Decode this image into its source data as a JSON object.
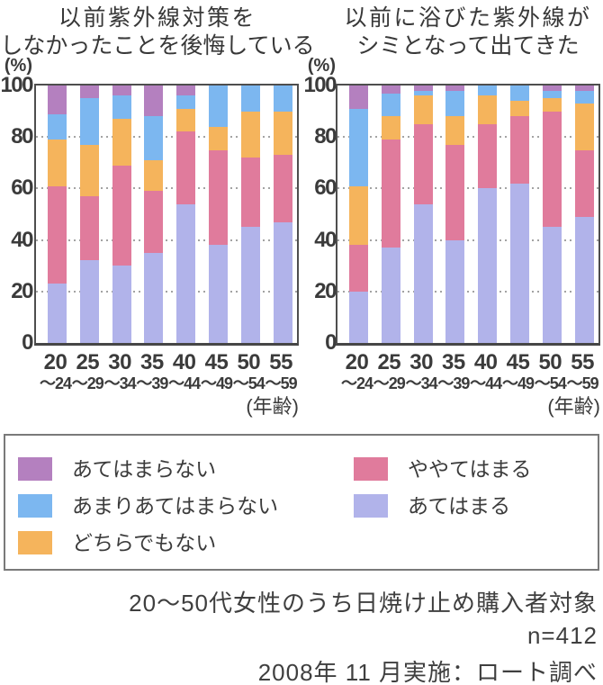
{
  "ui": {
    "percent_label": "(%)",
    "age_axis_label": "(年齢)",
    "y_ticks": [
      100,
      80,
      60,
      40,
      20,
      0
    ],
    "legend": {
      "columns": [
        [
          {
            "label": "あてはまらない",
            "color": "#b480bf"
          },
          {
            "label": "あまりあてはまらない",
            "color": "#7cb7f0"
          },
          {
            "label": "どちらでもない",
            "color": "#f5b45c"
          }
        ],
        [
          {
            "label": "ややてはまる",
            "color": "#e07b9c"
          },
          {
            "label": "あてはまる",
            "color": "#b1b3ea"
          }
        ]
      ]
    },
    "footer": {
      "line1": "20〜50代女性のうち日焼け止め購入者対象",
      "line2": "n=412",
      "line3": "2008年 11 月実施：ロート調べ"
    }
  },
  "chart_data": [
    {
      "type": "bar",
      "stacked": true,
      "unit": "%",
      "ylim": [
        0,
        100
      ],
      "grid": "dotted horizontal at 20/40/60/80",
      "title_lines": [
        "以前紫外線対策を",
        "しなかったことを後悔している"
      ],
      "xlabel": "(年齢)",
      "ylabel": "(%)",
      "categories": [
        {
          "age": "20",
          "range": "〜24"
        },
        {
          "age": "25",
          "range": "〜29"
        },
        {
          "age": "30",
          "range": "〜34"
        },
        {
          "age": "35",
          "range": "〜39"
        },
        {
          "age": "40",
          "range": "〜44"
        },
        {
          "age": "45",
          "range": "〜49"
        },
        {
          "age": "50",
          "range": "〜54"
        },
        {
          "age": "55",
          "range": "〜59"
        }
      ],
      "series": [
        {
          "name": "あてはまる",
          "color": "#b1b3ea",
          "values": [
            23,
            32,
            30,
            35,
            54,
            38,
            45,
            47
          ]
        },
        {
          "name": "ややてはまる",
          "color": "#e07b9c",
          "values": [
            38,
            25,
            39,
            24,
            28,
            37,
            27,
            26
          ]
        },
        {
          "name": "どちらでもない",
          "color": "#f5b45c",
          "values": [
            18,
            20,
            18,
            12,
            9,
            9,
            18,
            17
          ]
        },
        {
          "name": "あまりあてはまらない",
          "color": "#7cb7f0",
          "values": [
            10,
            18,
            9,
            17,
            5,
            16,
            10,
            10
          ]
        },
        {
          "name": "あてはまらない",
          "color": "#b480bf",
          "values": [
            11,
            5,
            4,
            12,
            4,
            0,
            0,
            0
          ]
        }
      ]
    },
    {
      "type": "bar",
      "stacked": true,
      "unit": "%",
      "ylim": [
        0,
        100
      ],
      "grid": "dotted horizontal at 20/40/60/80",
      "title_lines": [
        "以前に浴びた紫外線が",
        "シミとなって出てきた"
      ],
      "xlabel": "(年齢)",
      "ylabel": "(%)",
      "categories": [
        {
          "age": "20",
          "range": "〜24"
        },
        {
          "age": "25",
          "range": "〜29"
        },
        {
          "age": "30",
          "range": "〜34"
        },
        {
          "age": "35",
          "range": "〜39"
        },
        {
          "age": "40",
          "range": "〜44"
        },
        {
          "age": "45",
          "range": "〜49"
        },
        {
          "age": "50",
          "range": "〜54"
        },
        {
          "age": "55",
          "range": "〜59"
        }
      ],
      "series": [
        {
          "name": "あてはまる",
          "color": "#b1b3ea",
          "values": [
            20,
            37,
            54,
            40,
            60,
            62,
            45,
            49
          ]
        },
        {
          "name": "ややてはまる",
          "color": "#e07b9c",
          "values": [
            18,
            42,
            31,
            37,
            25,
            26,
            45,
            26
          ]
        },
        {
          "name": "どちらでもない",
          "color": "#f5b45c",
          "values": [
            23,
            9,
            11,
            11,
            11,
            6,
            5,
            18
          ]
        },
        {
          "name": "あまりあてはまらない",
          "color": "#7cb7f0",
          "values": [
            30,
            9,
            2,
            10,
            4,
            6,
            3,
            5
          ]
        },
        {
          "name": "あてはまらない",
          "color": "#b480bf",
          "values": [
            9,
            3,
            2,
            2,
            0,
            0,
            2,
            2
          ]
        }
      ]
    }
  ]
}
